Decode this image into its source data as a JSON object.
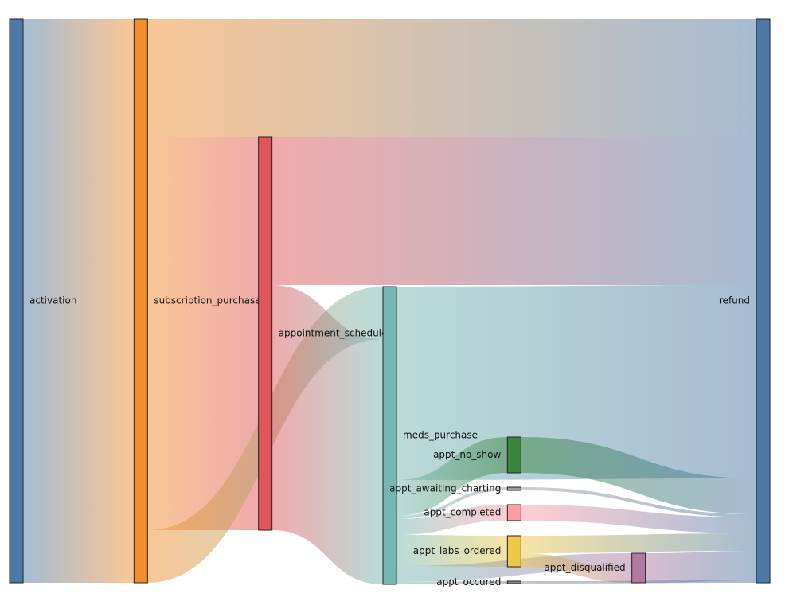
{
  "chart_data": {
    "type": "sankey",
    "nodes": [
      {
        "name": "activation",
        "color": "#4e79a7"
      },
      {
        "name": "subscription_purchase",
        "color": "#f28e2b"
      },
      {
        "name": "appointment_scheduled",
        "color": "#e15759"
      },
      {
        "name": "meds_purchase",
        "color": "#76b7b2"
      },
      {
        "name": "appt_no_show",
        "color": "#3b843f"
      },
      {
        "name": "appt_awaiting_charting",
        "color": "#9c9c9c"
      },
      {
        "name": "appt_completed",
        "color": "#ff9da7"
      },
      {
        "name": "appt_labs_ordered",
        "color": "#edc948"
      },
      {
        "name": "appt_occured",
        "color": "#8c8c8c"
      },
      {
        "name": "appt_disqualified",
        "color": "#b07aa1"
      },
      {
        "name": "refund",
        "color": "#4e79a7"
      }
    ],
    "links": [
      {
        "source": 0,
        "target": 1,
        "value": 708
      },
      {
        "source": 1,
        "target": 10,
        "value": 148
      },
      {
        "source": 1,
        "target": 2,
        "value": 494
      },
      {
        "source": 1,
        "target": 3,
        "value": 66
      },
      {
        "source": 2,
        "target": 10,
        "value": 186
      },
      {
        "source": 2,
        "target": 3,
        "value": 308
      },
      {
        "source": 3,
        "target": 10,
        "value": 243
      },
      {
        "source": 3,
        "target": 4,
        "value": 45
      },
      {
        "source": 3,
        "target": 5,
        "value": 4
      },
      {
        "source": 3,
        "target": 6,
        "value": 20
      },
      {
        "source": 3,
        "target": 7,
        "value": 39
      },
      {
        "source": 3,
        "target": 9,
        "value": 20
      },
      {
        "source": 3,
        "target": 8,
        "value": 3
      },
      {
        "source": 4,
        "target": 10,
        "value": 45
      },
      {
        "source": 5,
        "target": 10,
        "value": 4
      },
      {
        "source": 6,
        "target": 10,
        "value": 20
      },
      {
        "source": 7,
        "target": 10,
        "value": 22
      },
      {
        "source": 7,
        "target": 9,
        "value": 17
      },
      {
        "source": 9,
        "target": 10,
        "value": 37
      },
      {
        "source": 8,
        "target": 10,
        "value": 3
      }
    ]
  }
}
